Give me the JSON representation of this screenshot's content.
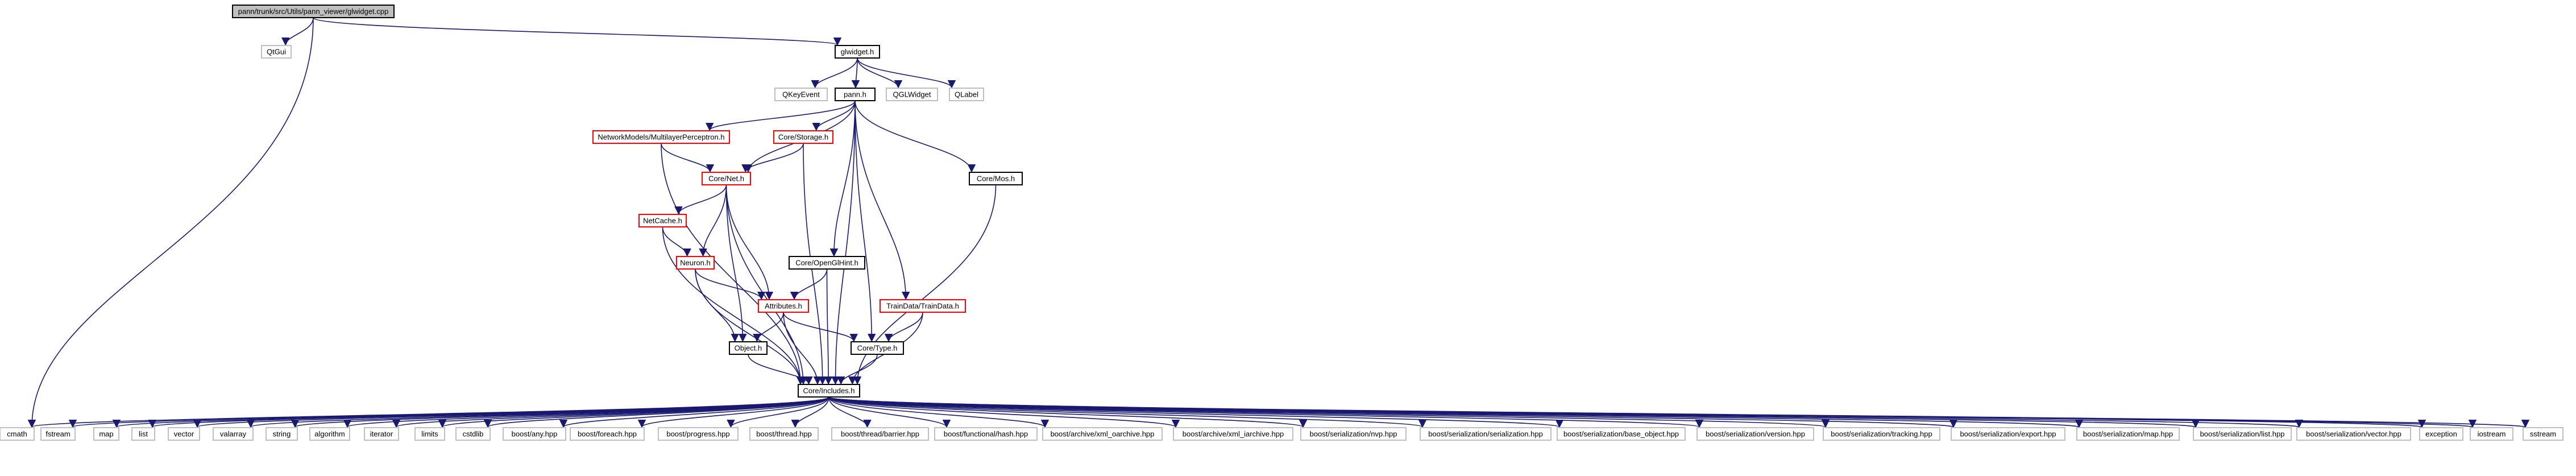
{
  "root": "pann/trunk/src/Utils/pann_viewer/glwidget.cpp",
  "colors": {
    "edge": "#191970",
    "normal_border": "#000000",
    "missing_doc_border": "#ff0000",
    "external_border": "#bfbfbf",
    "root_fill": "#bfbfbf"
  },
  "nodes": [
    {
      "id": "glwidget_cpp",
      "label": "pann/trunk/src/Utils/pann_viewer/glwidget.cpp",
      "style": "root"
    },
    {
      "id": "QtGui",
      "label": "QtGui",
      "style": "external"
    },
    {
      "id": "glwidget_h",
      "label": "glwidget.h",
      "style": "normal"
    },
    {
      "id": "QKeyEvent",
      "label": "QKeyEvent",
      "style": "external"
    },
    {
      "id": "pann_h",
      "label": "pann.h",
      "style": "normal"
    },
    {
      "id": "QGLWidget",
      "label": "QGLWidget",
      "style": "external"
    },
    {
      "id": "QLabel",
      "label": "QLabel",
      "style": "external"
    },
    {
      "id": "MLP",
      "label": "NetworkModels/MultilayerPerceptron.h",
      "style": "red"
    },
    {
      "id": "CoreStorage",
      "label": "Core/Storage.h",
      "style": "red"
    },
    {
      "id": "CoreNet",
      "label": "Core/Net.h",
      "style": "red"
    },
    {
      "id": "CoreMos",
      "label": "Core/Mos.h",
      "style": "normal"
    },
    {
      "id": "NetCache",
      "label": "NetCache.h",
      "style": "red"
    },
    {
      "id": "Neuron",
      "label": "Neuron.h",
      "style": "red"
    },
    {
      "id": "CoreOpenGlHint",
      "label": "Core/OpenGlHint.h",
      "style": "normal"
    },
    {
      "id": "Attributes",
      "label": "Attributes.h",
      "style": "red"
    },
    {
      "id": "TrainData",
      "label": "TrainData/TrainData.h",
      "style": "red"
    },
    {
      "id": "Object",
      "label": "Object.h",
      "style": "normal"
    },
    {
      "id": "CoreType",
      "label": "Core/Type.h",
      "style": "normal"
    },
    {
      "id": "CoreIncludes",
      "label": "Core/Includes.h",
      "style": "normal"
    },
    {
      "id": "cmath",
      "label": "cmath",
      "style": "external"
    },
    {
      "id": "fstream",
      "label": "fstream",
      "style": "external"
    },
    {
      "id": "map",
      "label": "map",
      "style": "external"
    },
    {
      "id": "list",
      "label": "list",
      "style": "external"
    },
    {
      "id": "vector",
      "label": "vector",
      "style": "external"
    },
    {
      "id": "valarray",
      "label": "valarray",
      "style": "external"
    },
    {
      "id": "string",
      "label": "string",
      "style": "external"
    },
    {
      "id": "algorithm",
      "label": "algorithm",
      "style": "external"
    },
    {
      "id": "iterator",
      "label": "iterator",
      "style": "external"
    },
    {
      "id": "limits",
      "label": "limits",
      "style": "external"
    },
    {
      "id": "cstdlib",
      "label": "cstdlib",
      "style": "external"
    },
    {
      "id": "b_any",
      "label": "boost/any.hpp",
      "style": "external"
    },
    {
      "id": "b_foreach",
      "label": "boost/foreach.hpp",
      "style": "external"
    },
    {
      "id": "b_progress",
      "label": "boost/progress.hpp",
      "style": "external"
    },
    {
      "id": "b_thread",
      "label": "boost/thread.hpp",
      "style": "external"
    },
    {
      "id": "b_barrier",
      "label": "boost/thread/barrier.hpp",
      "style": "external"
    },
    {
      "id": "b_hash",
      "label": "boost/functional/hash.hpp",
      "style": "external"
    },
    {
      "id": "b_xml_oarchive",
      "label": "boost/archive/xml_oarchive.hpp",
      "style": "external"
    },
    {
      "id": "b_xml_iarchive",
      "label": "boost/archive/xml_iarchive.hpp",
      "style": "external"
    },
    {
      "id": "b_nvp",
      "label": "boost/serialization/nvp.hpp",
      "style": "external"
    },
    {
      "id": "b_serialization",
      "label": "boost/serialization/serialization.hpp",
      "style": "external"
    },
    {
      "id": "b_base_object",
      "label": "boost/serialization/base_object.hpp",
      "style": "external"
    },
    {
      "id": "b_version",
      "label": "boost/serialization/version.hpp",
      "style": "external"
    },
    {
      "id": "b_tracking",
      "label": "boost/serialization/tracking.hpp",
      "style": "external"
    },
    {
      "id": "b_export",
      "label": "boost/serialization/export.hpp",
      "style": "external"
    },
    {
      "id": "b_map",
      "label": "boost/serialization/map.hpp",
      "style": "external"
    },
    {
      "id": "b_list",
      "label": "boost/serialization/list.hpp",
      "style": "external"
    },
    {
      "id": "b_vector",
      "label": "boost/serialization/vector.hpp",
      "style": "external"
    },
    {
      "id": "exception",
      "label": "exception",
      "style": "external"
    },
    {
      "id": "iostream",
      "label": "iostream",
      "style": "external"
    },
    {
      "id": "sstream",
      "label": "sstream",
      "style": "external"
    }
  ],
  "edges": [
    [
      "glwidget_cpp",
      "QtGui"
    ],
    [
      "glwidget_cpp",
      "glwidget_h"
    ],
    [
      "glwidget_cpp",
      "cmath"
    ],
    [
      "glwidget_h",
      "QKeyEvent"
    ],
    [
      "glwidget_h",
      "pann_h"
    ],
    [
      "glwidget_h",
      "QGLWidget"
    ],
    [
      "glwidget_h",
      "QLabel"
    ],
    [
      "pann_h",
      "MLP"
    ],
    [
      "pann_h",
      "CoreStorage"
    ],
    [
      "pann_h",
      "CoreNet"
    ],
    [
      "pann_h",
      "CoreMos"
    ],
    [
      "pann_h",
      "CoreOpenGlHint"
    ],
    [
      "pann_h",
      "TrainData"
    ],
    [
      "pann_h",
      "CoreType"
    ],
    [
      "pann_h",
      "CoreIncludes"
    ],
    [
      "MLP",
      "CoreNet"
    ],
    [
      "MLP",
      "CoreIncludes"
    ],
    [
      "CoreStorage",
      "CoreNet"
    ],
    [
      "CoreStorage",
      "CoreIncludes"
    ],
    [
      "CoreNet",
      "NetCache"
    ],
    [
      "CoreNet",
      "Neuron"
    ],
    [
      "CoreNet",
      "Attributes"
    ],
    [
      "CoreNet",
      "Object"
    ],
    [
      "CoreNet",
      "CoreIncludes"
    ],
    [
      "NetCache",
      "Neuron"
    ],
    [
      "NetCache",
      "CoreIncludes"
    ],
    [
      "Neuron",
      "Attributes"
    ],
    [
      "Neuron",
      "Object"
    ],
    [
      "Neuron",
      "CoreIncludes"
    ],
    [
      "CoreOpenGlHint",
      "Attributes"
    ],
    [
      "CoreOpenGlHint",
      "CoreIncludes"
    ],
    [
      "Attributes",
      "Object"
    ],
    [
      "Attributes",
      "CoreType"
    ],
    [
      "Attributes",
      "CoreIncludes"
    ],
    [
      "TrainData",
      "CoreType"
    ],
    [
      "TrainData",
      "CoreIncludes"
    ],
    [
      "Object",
      "CoreIncludes"
    ],
    [
      "CoreType",
      "CoreIncludes"
    ],
    [
      "CoreMos",
      "CoreIncludes"
    ],
    [
      "CoreIncludes",
      "cmath"
    ],
    [
      "CoreIncludes",
      "fstream"
    ],
    [
      "CoreIncludes",
      "map"
    ],
    [
      "CoreIncludes",
      "list"
    ],
    [
      "CoreIncludes",
      "vector"
    ],
    [
      "CoreIncludes",
      "valarray"
    ],
    [
      "CoreIncludes",
      "string"
    ],
    [
      "CoreIncludes",
      "algorithm"
    ],
    [
      "CoreIncludes",
      "iterator"
    ],
    [
      "CoreIncludes",
      "limits"
    ],
    [
      "CoreIncludes",
      "cstdlib"
    ],
    [
      "CoreIncludes",
      "b_any"
    ],
    [
      "CoreIncludes",
      "b_foreach"
    ],
    [
      "CoreIncludes",
      "b_progress"
    ],
    [
      "CoreIncludes",
      "b_thread"
    ],
    [
      "CoreIncludes",
      "b_barrier"
    ],
    [
      "CoreIncludes",
      "b_hash"
    ],
    [
      "CoreIncludes",
      "b_xml_oarchive"
    ],
    [
      "CoreIncludes",
      "b_xml_iarchive"
    ],
    [
      "CoreIncludes",
      "b_nvp"
    ],
    [
      "CoreIncludes",
      "b_serialization"
    ],
    [
      "CoreIncludes",
      "b_base_object"
    ],
    [
      "CoreIncludes",
      "b_version"
    ],
    [
      "CoreIncludes",
      "b_tracking"
    ],
    [
      "CoreIncludes",
      "b_export"
    ],
    [
      "CoreIncludes",
      "b_map"
    ],
    [
      "CoreIncludes",
      "b_list"
    ],
    [
      "CoreIncludes",
      "b_vector"
    ],
    [
      "CoreIncludes",
      "exception"
    ],
    [
      "CoreIncludes",
      "iostream"
    ],
    [
      "CoreIncludes",
      "sstream"
    ]
  ]
}
